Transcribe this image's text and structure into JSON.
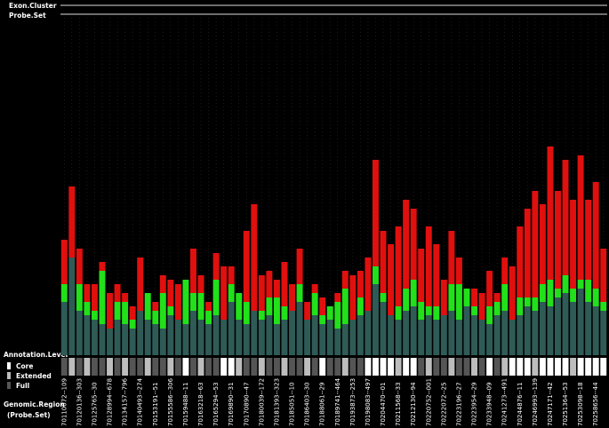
{
  "chart_data": {
    "type": "stacked-bar",
    "legend_top": [
      "Exon.Cluster",
      "Probe.Set"
    ],
    "annotation_title": "Annotation.Level",
    "annotation_levels": [
      {
        "name": "Core",
        "color": "#ffffff"
      },
      {
        "name": "Extended",
        "color": "#bdbdbd"
      },
      {
        "name": "Full",
        "color": "#555555"
      }
    ],
    "region_title": "Genomic.Region",
    "region_subtitle": "(Probe.Set)",
    "ylim": [
      0,
      380
    ],
    "categories": [
      "70110072--109",
      null,
      "70120136--303",
      null,
      "70125765--30",
      null,
      "70128994--678",
      null,
      "70134157--796",
      null,
      "70140493--274",
      null,
      "70153191--51",
      null,
      "70155586--306",
      null,
      "70159488--11",
      null,
      "70163218--63",
      null,
      "70165294--53",
      null,
      "70169890--31",
      null,
      "70170890--47",
      null,
      "70180039--172",
      null,
      "70181393--323",
      null,
      "70185051--10",
      null,
      "70186403--30",
      null,
      "70188061--29",
      null,
      "70189741--464",
      null,
      "70193873--253",
      null,
      "70198083--497",
      null,
      "70204470--01",
      null,
      "70211568--33",
      null,
      "70212130--94",
      null,
      "70220752--001",
      null,
      "70222072--25",
      null,
      "70223196--27",
      null,
      "70223954--29",
      null,
      "70233948--09",
      null,
      "70241273--491",
      null,
      "70244876--11",
      null,
      "70246993--139",
      null,
      "70247171--42",
      null,
      "70251364--53",
      null,
      "70253098--18",
      null,
      "70258656--44",
      null
    ],
    "series": [
      {
        "color": "#2f5b57",
        "values": [
          60,
          110,
          50,
          45,
          40,
          35,
          30,
          40,
          35,
          30,
          50,
          40,
          35,
          30,
          45,
          40,
          35,
          50,
          40,
          35,
          45,
          40,
          60,
          40,
          35,
          50,
          40,
          45,
          35,
          40,
          50,
          60,
          40,
          45,
          35,
          40,
          30,
          35,
          40,
          45,
          50,
          80,
          60,
          45,
          40,
          50,
          55,
          40,
          45,
          40,
          45,
          50,
          40,
          55,
          45,
          40,
          35,
          45,
          50,
          40,
          45,
          55,
          50,
          60,
          55,
          65,
          70,
          60,
          75,
          60,
          55,
          50
        ]
      },
      {
        "color": "#22e01a",
        "values": [
          20,
          0,
          30,
          15,
          10,
          60,
          0,
          20,
          25,
          10,
          0,
          30,
          15,
          40,
          10,
          0,
          50,
          20,
          30,
          15,
          40,
          0,
          20,
          30,
          25,
          0,
          10,
          20,
          30,
          15,
          0,
          20,
          0,
          25,
          10,
          15,
          30,
          40,
          0,
          20,
          0,
          20,
          10,
          0,
          15,
          25,
          30,
          20,
          10,
          15,
          0,
          30,
          40,
          20,
          10,
          0,
          20,
          15,
          30,
          0,
          20,
          10,
          15,
          20,
          30,
          10,
          20,
          15,
          10,
          25,
          20,
          10
        ]
      },
      {
        "color": "#e0100e",
        "values": [
          50,
          80,
          40,
          20,
          30,
          10,
          40,
          20,
          10,
          15,
          60,
          0,
          10,
          20,
          30,
          40,
          0,
          50,
          20,
          10,
          30,
          60,
          20,
          0,
          80,
          120,
          40,
          30,
          20,
          50,
          30,
          40,
          20,
          10,
          20,
          0,
          10,
          20,
          50,
          30,
          60,
          120,
          70,
          80,
          90,
          100,
          80,
          60,
          90,
          70,
          40,
          60,
          30,
          0,
          20,
          30,
          40,
          10,
          30,
          60,
          80,
          100,
          120,
          90,
          150,
          110,
          130,
          100,
          140,
          90,
          120,
          60
        ]
      }
    ],
    "annotation": [
      2,
      1,
      2,
      1,
      2,
      2,
      1,
      2,
      1,
      2,
      2,
      1,
      2,
      2,
      1,
      2,
      0,
      2,
      1,
      2,
      2,
      0,
      0,
      1,
      2,
      2,
      1,
      2,
      2,
      1,
      2,
      2,
      1,
      2,
      0,
      2,
      2,
      1,
      2,
      2,
      0,
      0,
      0,
      0,
      1,
      0,
      0,
      2,
      1,
      2,
      2,
      1,
      2,
      2,
      1,
      2,
      0,
      2,
      1,
      0,
      0,
      0,
      1,
      0,
      0,
      0,
      0,
      1,
      0,
      0,
      0,
      0
    ]
  }
}
